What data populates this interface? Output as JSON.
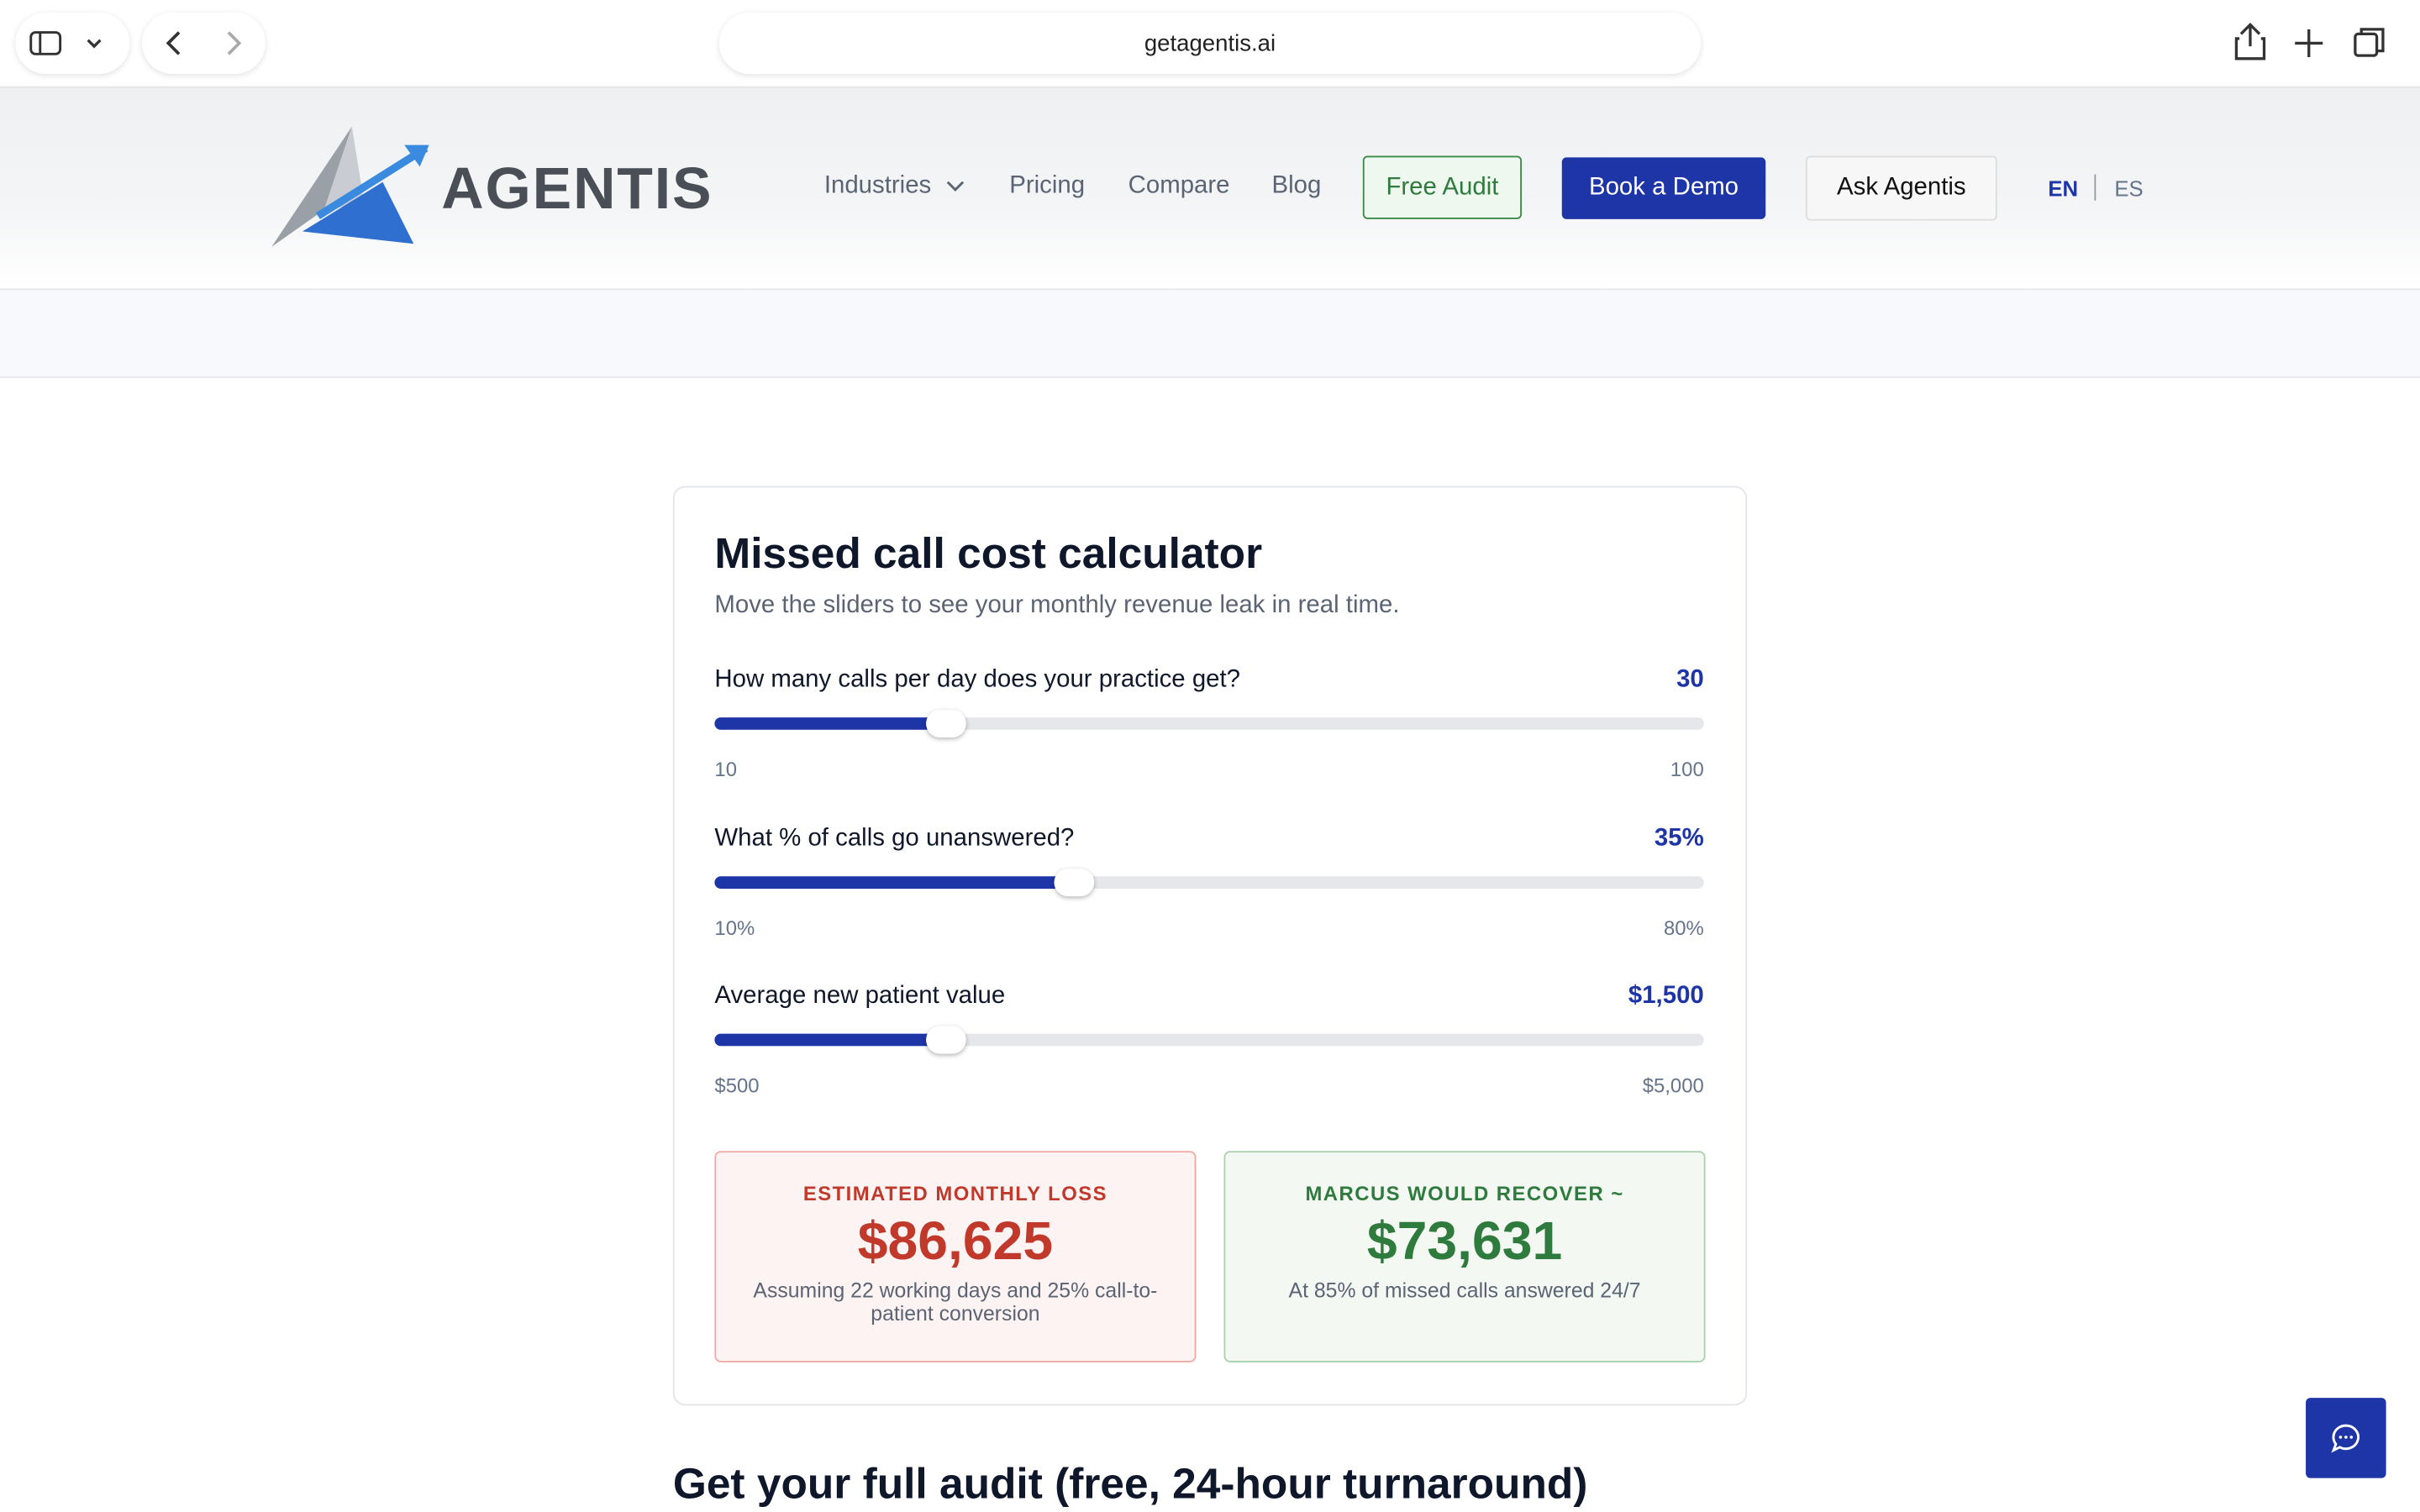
{
  "browser": {
    "url": "getagentis.ai"
  },
  "header": {
    "logo": "AGENTIS",
    "nav": [
      "Industries",
      "Pricing",
      "Compare",
      "Blog"
    ],
    "free_audit": "Free Audit",
    "book_demo": "Book a Demo",
    "ask": "Ask Agentis",
    "lang": [
      "EN",
      "ES"
    ]
  },
  "calculator": {
    "title": "Missed call cost calculator",
    "subtitle": "Move the sliders to see your monthly revenue leak in real time.",
    "sliders": [
      {
        "label": "How many calls per day does your practice get?",
        "value": "30",
        "min": "10",
        "max": "100"
      },
      {
        "label": "What % of calls go unanswered?",
        "value": "35%",
        "min": "10%",
        "max": "80%"
      },
      {
        "label": "Average new patient value",
        "value": "$1,500",
        "min": "$500",
        "max": "$5,000"
      }
    ],
    "loss": {
      "heading": "ESTIMATED MONTHLY LOSS",
      "amount": "$86,625",
      "note": "Assuming 22 working days and 25% call-to-patient conversion"
    },
    "recover": {
      "heading": "MARCUS WOULD RECOVER ~",
      "amount": "$73,631",
      "note": "At 85% of missed calls answered 24/7"
    }
  },
  "section": {
    "heading": "Get your full audit (free, 24-hour turnaround)"
  }
}
